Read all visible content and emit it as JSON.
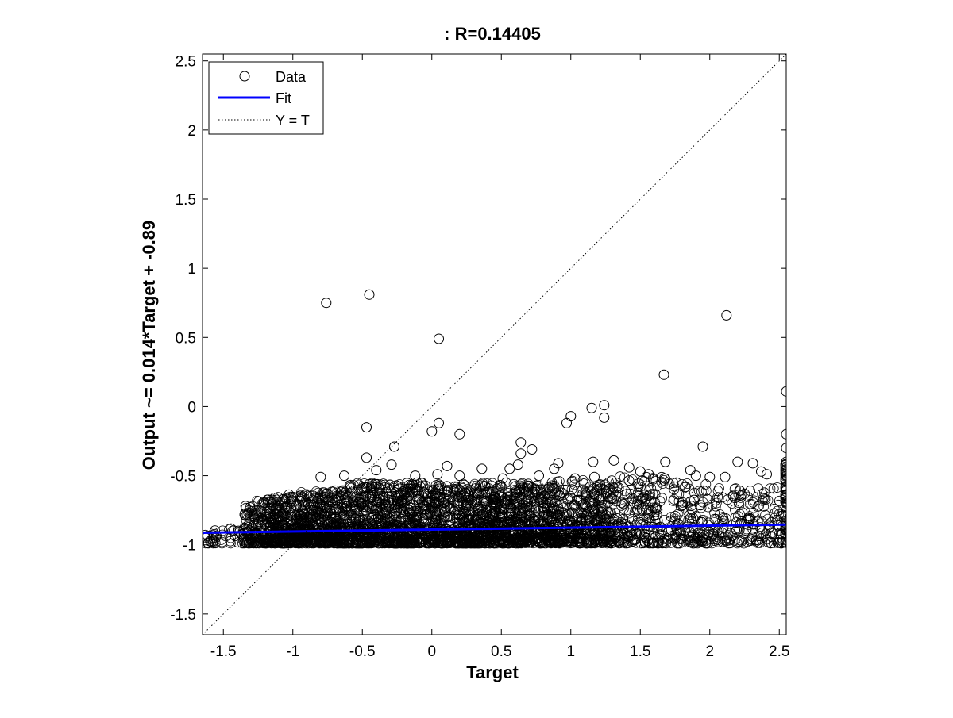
{
  "chart_data": {
    "type": "scatter",
    "title": ": R=0.14405",
    "xlabel": "Target",
    "ylabel": "Output ~= 0.014*Target + -0.89",
    "xlim": [
      -1.65,
      2.55
    ],
    "ylim": [
      -1.65,
      2.55
    ],
    "xticks": [
      -1.5,
      -1,
      -0.5,
      0,
      0.5,
      1,
      1.5,
      2,
      2.5
    ],
    "xtick_labels": [
      "-1.5",
      "-1",
      "-0.5",
      "0",
      "0.5",
      "1",
      "1.5",
      "2",
      "2.5"
    ],
    "yticks": [
      -1.5,
      -1,
      -0.5,
      0,
      0.5,
      1,
      1.5,
      2,
      2.5
    ],
    "ytick_labels": [
      "-1.5",
      "-1",
      "-0.5",
      "0",
      "0.5",
      "1",
      "1.5",
      "2",
      "2.5"
    ],
    "grid": false,
    "legend": {
      "position": "top-left",
      "entries": [
        "Data",
        "Fit",
        "Y = T"
      ]
    },
    "series": [
      {
        "name": "Data",
        "style": "open circle markers",
        "color": "#000000",
        "x": [
          -0.76,
          -0.45,
          0.05,
          2.12,
          1.67,
          2.55,
          1.24,
          1.24,
          1.15,
          1.0,
          0.97,
          0.05,
          -0.47,
          0.0,
          -0.27,
          0.2,
          0.51,
          0.64,
          0.72,
          0.64,
          1.95,
          -0.47,
          -0.8,
          -0.63,
          -0.4,
          -0.29,
          -0.12,
          0.04,
          0.11,
          0.2,
          0.36,
          0.56,
          0.62,
          0.77,
          0.88,
          0.91,
          1.03,
          1.16,
          1.17,
          1.31,
          1.42,
          1.5,
          1.56,
          1.68,
          1.76,
          1.86,
          1.9,
          2.0,
          2.11,
          2.2,
          2.31,
          2.37,
          2.41,
          2.55,
          2.55,
          2.55,
          2.55,
          2.55,
          2.55
        ],
        "y": [
          0.75,
          0.81,
          0.49,
          0.66,
          0.23,
          0.11,
          0.01,
          -0.08,
          -0.01,
          -0.07,
          -0.12,
          -0.12,
          -0.15,
          -0.18,
          -0.29,
          -0.2,
          -0.52,
          -0.26,
          -0.31,
          -0.34,
          -0.29,
          -0.37,
          -0.51,
          -0.5,
          -0.46,
          -0.42,
          -0.5,
          -0.49,
          -0.43,
          -0.5,
          -0.45,
          -0.45,
          -0.42,
          -0.5,
          -0.45,
          -0.41,
          -0.52,
          -0.4,
          -0.51,
          -0.39,
          -0.44,
          -0.47,
          -0.49,
          -0.4,
          -0.55,
          -0.46,
          -0.5,
          -0.51,
          -0.51,
          -0.4,
          -0.41,
          -0.47,
          -0.49,
          -0.2,
          -0.3,
          -0.4,
          -0.5,
          -0.6,
          -0.7
        ]
      },
      {
        "name": "Fit",
        "style": "solid line",
        "color": "#0000ff",
        "x": [
          -1.65,
          2.55
        ],
        "y": [
          -0.913,
          -0.854
        ]
      },
      {
        "name": "Y = T",
        "style": "dotted line",
        "color": "#000000",
        "x": [
          -1.65,
          2.55
        ],
        "y": [
          -1.65,
          2.55
        ]
      }
    ]
  }
}
